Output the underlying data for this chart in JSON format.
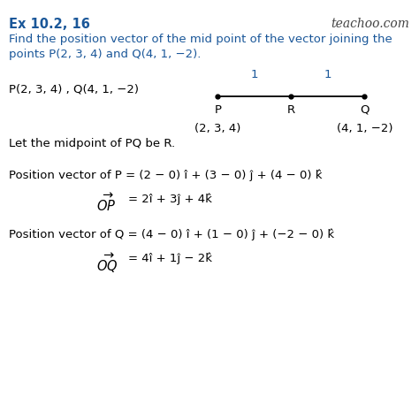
{
  "title": "Ex 10.2, 16",
  "watermark": "teachoo.com",
  "bg_color": "#ffffff",
  "title_color": "#1a5799",
  "question_color": "#1a5799",
  "text_color": "#000000",
  "diagram_number_color": "#1a5799",
  "question_line1": "Find the position vector of the mid point of the vector joining the",
  "question_line2": "points P(2, 3, 4) and Q(4, 1, −2).",
  "points_label": "P(2, 3, 4) , Q(4, 1, −2)",
  "diagram": {
    "P_label": "P",
    "R_label": "R",
    "Q_label": "Q",
    "P_coord": "(2, 3, 4)",
    "Q_coord": "(4, 1, −2)",
    "seg1_label": "1",
    "seg2_label": "1"
  },
  "midpoint_text": "Let the midpoint of PQ be R.",
  "pos_P_line1": "Position vector of P = (2 − 0) î + (3 − 0) ĵ + (4 − 0) k̂",
  "pos_P_line2_eq": "= 2î + 3ĵ + 4k̂",
  "pos_Q_line1": "Position vector of Q = (4 − 0) î + (1 − 0) ĵ + (−2 − 0) k̂",
  "pos_Q_line2_eq": "= 4î + 1ĵ − 2k̂",
  "fs_title": 10.5,
  "fs_text": 9.5,
  "fs_watermark": 10,
  "fs_math": 10.5
}
